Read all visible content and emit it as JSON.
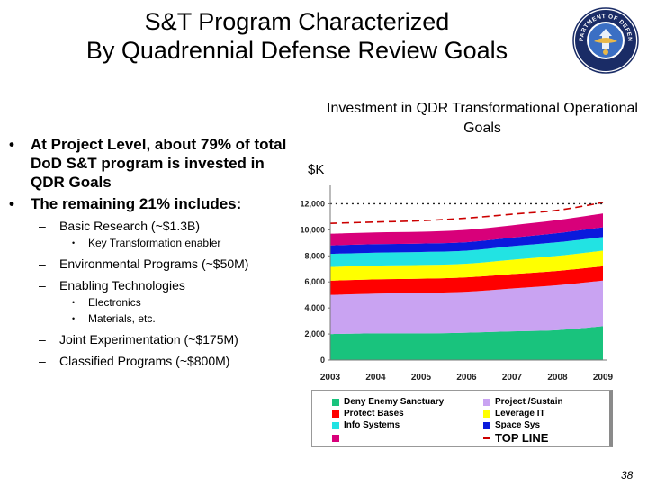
{
  "slide": {
    "title_line1": "S&T Program Characterized",
    "title_line2": "By Quadrennial Defense Review Goals",
    "seal_text": "DEPARTMENT OF DEFENSE",
    "page_number": "38"
  },
  "bullets": [
    {
      "level": 1,
      "text": "At Project Level, about 79% of total DoD S&T program is invested in QDR Goals"
    },
    {
      "level": 1,
      "text": "The remaining 21% includes:"
    },
    {
      "level": 2,
      "text": "Basic Research (~$1.3B)"
    },
    {
      "level": 3,
      "text": "Key Transformation enabler"
    },
    {
      "level": 2,
      "text": "Environmental Programs (~$50M)"
    },
    {
      "level": 2,
      "text": "Enabling Technologies"
    },
    {
      "level": 3,
      "text": "Electronics"
    },
    {
      "level": 3,
      "text": "Materials, etc."
    },
    {
      "level": 2,
      "text": "Joint Experimentation (~$175M)"
    },
    {
      "level": 2,
      "text": "Classified Programs (~$800M)"
    }
  ],
  "chart_data": {
    "type": "area",
    "stacked": true,
    "title": "Investment in QDR Transformational Operational Goals",
    "ylabel": "$K",
    "xlabel": "",
    "categories": [
      "2003",
      "2004",
      "2005",
      "2006",
      "2007",
      "2008",
      "2009"
    ],
    "ylim": [
      0,
      13000
    ],
    "yticks": [
      0,
      2000,
      4000,
      6000,
      8000,
      10000,
      12000
    ],
    "ytick_labels": [
      "0",
      "2,000",
      "4,000",
      "6,000",
      "8,000",
      "10,000",
      "12,000"
    ],
    "grid": false,
    "legend_position": "bottom",
    "series": [
      {
        "name": "Deny Enemy Sanctuary",
        "color": "#19c37d",
        "values": [
          2000,
          2050,
          2050,
          2100,
          2200,
          2300,
          2600
        ]
      },
      {
        "name": "Project /Sustain",
        "color": "#c9a3f2",
        "values": [
          3000,
          3050,
          3100,
          3150,
          3300,
          3450,
          3500
        ]
      },
      {
        "name": "Protect Bases",
        "color": "#ff0000",
        "values": [
          1100,
          1100,
          1100,
          1100,
          1100,
          1100,
          1100
        ]
      },
      {
        "name": "Leverage IT",
        "color": "#ffff00",
        "values": [
          1050,
          1050,
          1050,
          1050,
          1100,
          1150,
          1200
        ]
      },
      {
        "name": "Info Systems",
        "color": "#22e3e3",
        "values": [
          1000,
          1000,
          1000,
          1000,
          1050,
          1050,
          1050
        ]
      },
      {
        "name": "Space Sys",
        "color": "#0a1adc",
        "values": [
          650,
          650,
          650,
          650,
          650,
          700,
          750
        ]
      },
      {
        "name": "",
        "color": "#d8007a",
        "values": [
          900,
          900,
          900,
          950,
          950,
          1000,
          1050
        ]
      }
    ],
    "lines": [
      {
        "name": "TOP LINE",
        "color": "#cc0000",
        "style": "dashed",
        "values": [
          10500,
          10600,
          10700,
          10900,
          11200,
          11500,
          12100
        ]
      },
      {
        "name": "",
        "color": "#222222",
        "style": "dotted",
        "values": [
          12000,
          12000,
          12000,
          12000,
          12000,
          12000,
          12000
        ]
      }
    ]
  }
}
